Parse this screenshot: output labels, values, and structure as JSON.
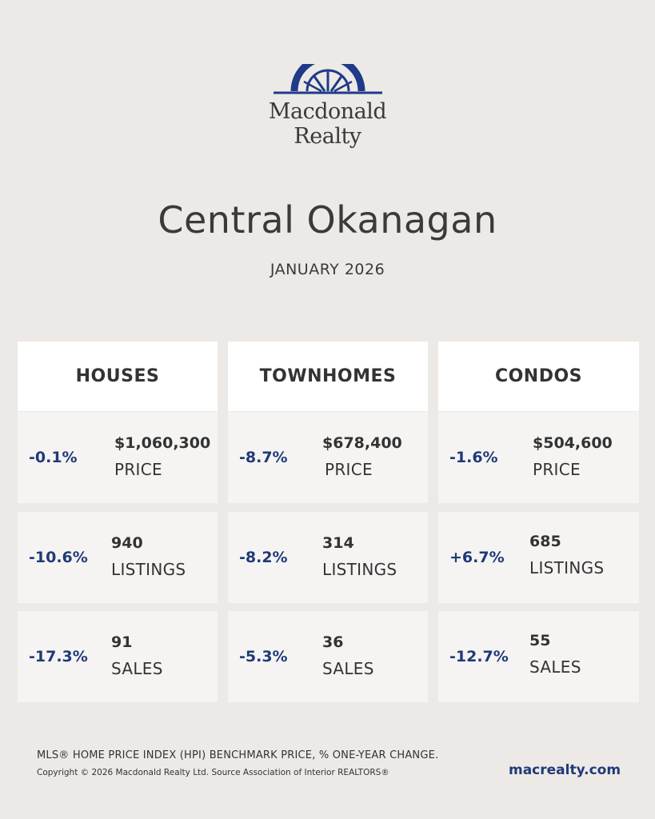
{
  "brand": {
    "name_line1": "Macdonald",
    "name_line2": "Realty",
    "color": "#1f3a8a"
  },
  "title": "Central Okanagan",
  "subtitle": "JANUARY 2026",
  "columns": [
    {
      "heading": "HOUSES",
      "stats": [
        {
          "change": "-0.1%",
          "value": "$1,060,300",
          "label": "PRICE"
        },
        {
          "change": "-10.6%",
          "value": "940",
          "label": "LISTINGS"
        },
        {
          "change": "-17.3%",
          "value": "91",
          "label": "SALES"
        }
      ]
    },
    {
      "heading": "TOWNHOMES",
      "stats": [
        {
          "change": "-8.7%",
          "value": "$678,400",
          "label": "PRICE"
        },
        {
          "change": "-8.2%",
          "value": "314",
          "label": "LISTINGS"
        },
        {
          "change": "-5.3%",
          "value": "36",
          "label": "SALES"
        }
      ]
    },
    {
      "heading": "CONDOS",
      "stats": [
        {
          "change": "-1.6%",
          "value": "$504,600",
          "label": "PRICE"
        },
        {
          "change": "+6.7%",
          "value": "685",
          "label": "LISTINGS"
        },
        {
          "change": "-12.7%",
          "value": "55",
          "label": "SALES"
        }
      ]
    }
  ],
  "footer": {
    "note": "MLS® HOME PRICE INDEX (HPI) BENCHMARK PRICE, % ONE-YEAR CHANGE.",
    "copyright": "Copyright © 2026 Macdonald Realty Ltd. Source Association of Interior REALTORS®",
    "url": "macrealty.com"
  },
  "colors": {
    "background": "#ede9e6",
    "accent": "#1f3a78",
    "card_header": "#ffffff",
    "card_cell": "#f6f4f3"
  }
}
